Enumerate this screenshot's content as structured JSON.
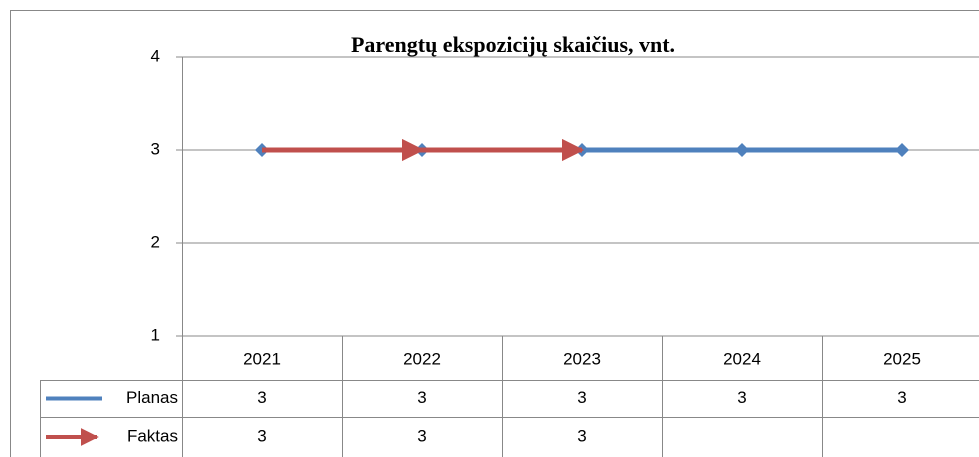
{
  "chart_data": {
    "type": "line",
    "title": "Parengtų ekspozicijų skaičius, vnt.",
    "categories": [
      "2021",
      "2022",
      "2023",
      "2024",
      "2025"
    ],
    "series": [
      {
        "name": "Planas",
        "color": "#4f81bd",
        "values": [
          3,
          3,
          3,
          3,
          3
        ]
      },
      {
        "name": "Faktas",
        "color": "#c0504d",
        "values": [
          3,
          3,
          3,
          null,
          null
        ]
      }
    ],
    "ylim": [
      1,
      4
    ],
    "yticks": [
      1,
      2,
      3,
      4
    ],
    "grid": true
  }
}
